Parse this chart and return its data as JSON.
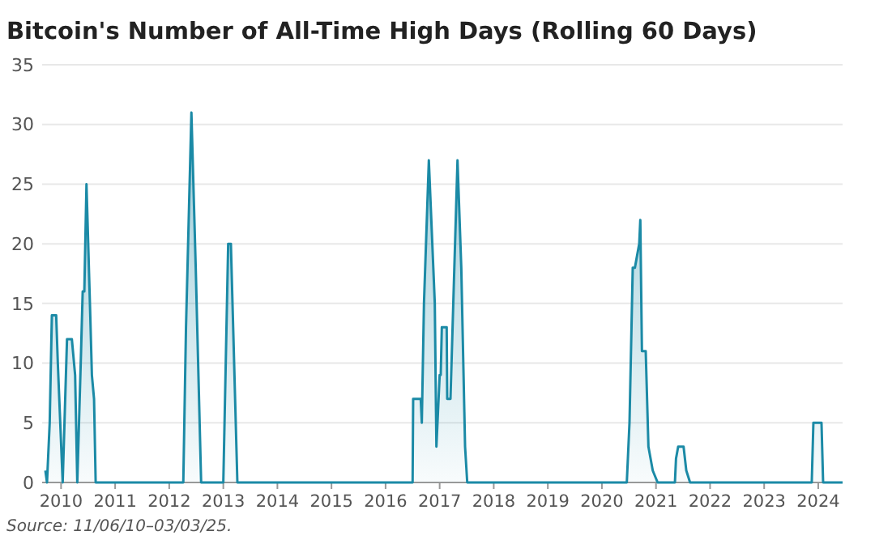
{
  "chart_data": {
    "type": "area",
    "title": "Bitcoin's Number of All-Time High Days (Rolling 60 Days)",
    "annotations": [
      "Source: 11/06/10–03/03/25."
    ],
    "series": [
      {
        "color": "#1b8aa6",
        "x": [
          2009.71,
          2009.74,
          2009.79,
          2009.83,
          2009.91,
          2009.94,
          2010.03,
          2010.11,
          2010.2,
          2010.26,
          2010.3,
          2010.37,
          2010.4,
          2010.43,
          2010.47,
          2010.54,
          2010.57,
          2010.61,
          2010.64,
          2012.26,
          2012.31,
          2012.41,
          2012.49,
          2012.59,
          2013.0,
          2013.09,
          2013.14,
          2013.26,
          2016.5,
          2016.51,
          2016.65,
          2016.67,
          2016.71,
          2016.8,
          2016.91,
          2016.94,
          2017.0,
          2017.02,
          2017.04,
          2017.13,
          2017.14,
          2017.2,
          2017.33,
          2017.4,
          2017.47,
          2017.51,
          2020.46,
          2020.47,
          2020.51,
          2020.57,
          2020.61,
          2020.69,
          2020.71,
          2020.74,
          2020.81,
          2020.86,
          2020.94,
          2021.03,
          2021.35,
          2021.37,
          2021.41,
          2021.51,
          2021.56,
          2021.63,
          2023.88,
          2023.91,
          2024.06,
          2024.09,
          2024.45
        ],
        "values": [
          1,
          0,
          5,
          14,
          14,
          10,
          0,
          12,
          12,
          9,
          0,
          11,
          16,
          16,
          25,
          14,
          9,
          7,
          0,
          0,
          13,
          31,
          18,
          0,
          0,
          20,
          20,
          0,
          0,
          7,
          7,
          5,
          15,
          27,
          15,
          3,
          9,
          9,
          13,
          13,
          7,
          7,
          27,
          18,
          3,
          0,
          0,
          1,
          5,
          18,
          18,
          20,
          22,
          11,
          11,
          3,
          1,
          0,
          0,
          2,
          3,
          3,
          1,
          0,
          0,
          5,
          5,
          0,
          0
        ]
      }
    ],
    "xlim": [
      2009.65,
      2024.45
    ],
    "xticks": [
      2010,
      2011,
      2012,
      2013,
      2014,
      2015,
      2016,
      2017,
      2018,
      2019,
      2020,
      2021,
      2022,
      2023,
      2024
    ],
    "ylim": [
      0,
      35
    ],
    "yticks": [
      0,
      5,
      10,
      15,
      20,
      25,
      30,
      35
    ],
    "grid": "y"
  }
}
